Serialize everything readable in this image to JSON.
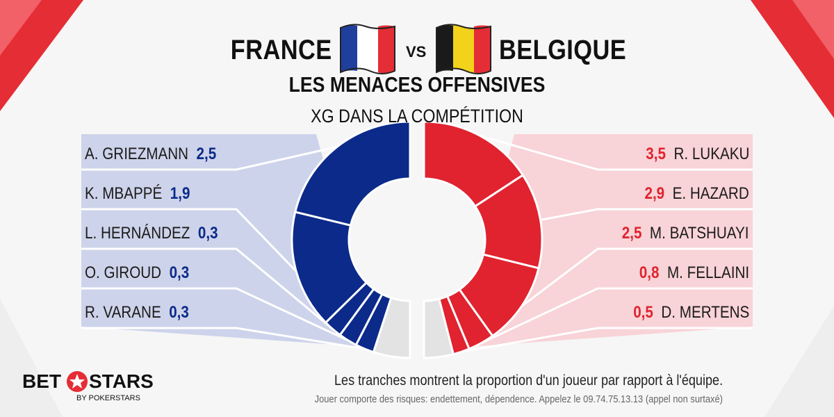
{
  "header": {
    "team_left": "FRANCE",
    "team_right": "BELGIQUE",
    "vs": "VS",
    "title": "LES MENACES OFFENSIVES",
    "subtitle": "XG DANS LA COMPÉTITION"
  },
  "colors": {
    "france": "#0b2a8a",
    "france_panel": "#cdd3ea",
    "belgium": "#e0232f",
    "belgium_panel": "#f8d3d7",
    "remainder": "#e3e3e3"
  },
  "chart_data": [
    {
      "type": "pie",
      "team": "France",
      "categories": [
        "A. GRIEZMANN",
        "K. MBAPPÉ",
        "L. HERNÁNDEZ",
        "O. GIROUD",
        "R. VARANE"
      ],
      "values": [
        2.5,
        1.9,
        0.3,
        0.3,
        0.3
      ],
      "value_labels": [
        "2,5",
        "1,9",
        "0,3",
        "0,3",
        "0,3"
      ],
      "remainder_share": 0.1
    },
    {
      "type": "pie",
      "team": "Belgique",
      "categories": [
        "R. LUKAKU",
        "E. HAZARD",
        "M. BATSHUAYI",
        "M. FELLAINI",
        "D. MERTENS"
      ],
      "values": [
        3.5,
        2.9,
        2.5,
        0.8,
        0.5
      ],
      "value_labels": [
        "3,5",
        "2,9",
        "2,5",
        "0,8",
        "0,5"
      ],
      "remainder_share": 0.08
    }
  ],
  "footer": {
    "caption": "Les tranches montrent la proportion d'un joueur par rapport à l'équipe.",
    "disclaimer": "Jouer comporte des risques: endettement, dépendence. Appelez le 09.74.75.13.13  (appel non surtaxé)",
    "logo_left": "BET",
    "logo_right": "STARS",
    "logo_sub": "BY POKERSTARS"
  }
}
